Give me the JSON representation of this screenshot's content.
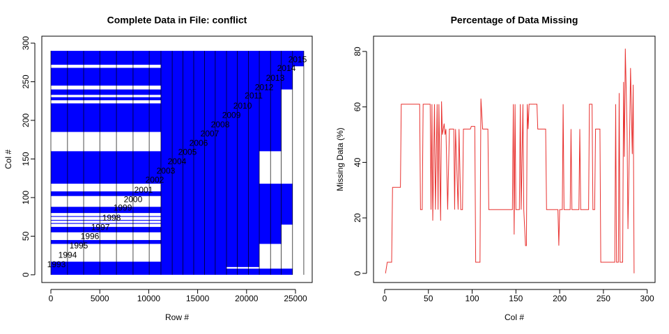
{
  "chart_data": [
    {
      "type": "missingness",
      "title": "Complete Data in File: conflict",
      "xlabel": "Row #",
      "ylabel": "Col #",
      "xlim": [
        -926,
        26709
      ],
      "ylim": [
        -10,
        309
      ],
      "xticks": [
        0,
        5000,
        10000,
        15000,
        20000,
        25000
      ],
      "yticks": [
        0,
        50,
        100,
        150,
        200,
        250,
        300
      ],
      "color": "#0000ff",
      "blocks": [
        [
          0,
          11250,
          0,
          17
        ],
        [
          0,
          11250,
          40,
          45
        ],
        [
          0,
          11250,
          55,
          62
        ],
        [
          0,
          11250,
          66,
          67
        ],
        [
          0,
          11250,
          70,
          71
        ],
        [
          0,
          11250,
          75,
          76
        ],
        [
          0,
          11250,
          80,
          88
        ],
        [
          0,
          11250,
          102,
          108
        ],
        [
          0,
          11250,
          118,
          160
        ],
        [
          0,
          11250,
          185,
          222
        ],
        [
          0,
          11250,
          226,
          230
        ],
        [
          0,
          11250,
          233,
          240
        ],
        [
          0,
          11250,
          245,
          268
        ],
        [
          0,
          11250,
          272,
          290
        ],
        [
          11250,
          17950,
          0,
          290
        ],
        [
          17950,
          21300,
          10,
          290
        ],
        [
          17950,
          23550,
          0,
          8
        ],
        [
          21300,
          23550,
          40,
          118
        ],
        [
          21300,
          23550,
          160,
          290
        ],
        [
          23550,
          24700,
          0,
          8
        ],
        [
          23550,
          24700,
          65,
          118
        ],
        [
          23550,
          24700,
          240,
          290
        ],
        [
          24700,
          25850,
          270,
          290
        ]
      ],
      "boundaries": [
        0,
        1700,
        3350,
        5000,
        6700,
        8400,
        10050,
        11250,
        12400,
        13500,
        14600,
        15700,
        16800,
        17950,
        19050,
        20200,
        21300,
        22450,
        23550,
        24700,
        25850
      ],
      "annotations": [
        {
          "text": "1993",
          "x": 570,
          "y": 12.6
        },
        {
          "text": "1994",
          "x": 1710,
          "y": 25
        },
        {
          "text": "1995",
          "x": 2850,
          "y": 37
        },
        {
          "text": "1996",
          "x": 3990,
          "y": 49
        },
        {
          "text": "1997",
          "x": 5060,
          "y": 61
        },
        {
          "text": "1998",
          "x": 6200,
          "y": 73
        },
        {
          "text": "1999",
          "x": 7340,
          "y": 86
        },
        {
          "text": "2000",
          "x": 8400,
          "y": 97
        },
        {
          "text": "2001",
          "x": 9470,
          "y": 109
        },
        {
          "text": "2002",
          "x": 10610,
          "y": 122
        },
        {
          "text": "2003",
          "x": 11750,
          "y": 134
        },
        {
          "text": "2004",
          "x": 12890,
          "y": 146
        },
        {
          "text": "2005",
          "x": 13960,
          "y": 158
        },
        {
          "text": "2006",
          "x": 15100,
          "y": 170
        },
        {
          "text": "2007",
          "x": 16240,
          "y": 182
        },
        {
          "text": "2008",
          "x": 17310,
          "y": 194
        },
        {
          "text": "2009",
          "x": 18450,
          "y": 206
        },
        {
          "text": "2010",
          "x": 19590,
          "y": 218
        },
        {
          "text": "2011",
          "x": 20730,
          "y": 231
        },
        {
          "text": "2012",
          "x": 21800,
          "y": 242
        },
        {
          "text": "2013",
          "x": 22930,
          "y": 254
        },
        {
          "text": "2014",
          "x": 24070,
          "y": 267
        },
        {
          "text": "2015",
          "x": 25210,
          "y": 278
        }
      ]
    },
    {
      "type": "line",
      "title": "Percentage of Data Missing",
      "xlabel": "Col #",
      "ylabel": "Missing Data (%)",
      "xlim": [
        -12.7,
        309
      ],
      "ylim": [
        -3.3,
        85.5
      ],
      "xticks": [
        0,
        50,
        100,
        150,
        200,
        250,
        300
      ],
      "yticks": [
        0,
        20,
        40,
        60,
        80
      ],
      "color": "#e8312f",
      "x": [
        1,
        3,
        8,
        9,
        18,
        19,
        40,
        41,
        43,
        44,
        52,
        53,
        54,
        55,
        57,
        58,
        60,
        61,
        62,
        64,
        65,
        66,
        67,
        68,
        69,
        70,
        72,
        74,
        79,
        80,
        81,
        84,
        85,
        87,
        89,
        90,
        98,
        99,
        103,
        104,
        109,
        110,
        112,
        118,
        119,
        146,
        147,
        148,
        149,
        150,
        154,
        155,
        156,
        158,
        159,
        161,
        162,
        163,
        164,
        165,
        174,
        175,
        184,
        185,
        198,
        199,
        200,
        203,
        204,
        205,
        212,
        213,
        214,
        222,
        223,
        224,
        233,
        234,
        237,
        238,
        240,
        241,
        246,
        247,
        263,
        264,
        265,
        267,
        268,
        269,
        272,
        273,
        274,
        275,
        277,
        278,
        280,
        281,
        283,
        284,
        285
      ],
      "values": [
        0,
        4,
        4,
        31,
        31,
        61,
        61,
        23,
        23,
        61,
        61,
        23,
        61,
        19,
        61,
        23,
        61,
        23,
        61,
        19,
        62,
        50,
        52,
        54,
        50,
        52,
        23,
        52,
        52,
        23,
        52,
        23,
        52,
        23,
        23,
        52,
        52,
        53,
        53,
        4,
        4,
        63,
        52,
        52,
        23,
        23,
        61,
        14,
        61,
        23,
        23,
        61,
        23,
        61,
        23,
        10,
        10,
        61,
        52,
        61,
        61,
        52,
        52,
        23,
        23,
        10,
        23,
        23,
        61,
        23,
        23,
        52,
        23,
        23,
        52,
        23,
        23,
        61,
        61,
        23,
        23,
        52,
        52,
        4,
        4,
        61,
        4,
        4,
        65,
        4,
        4,
        69,
        42,
        81,
        52,
        16,
        52,
        74,
        43,
        68,
        0
      ]
    }
  ]
}
